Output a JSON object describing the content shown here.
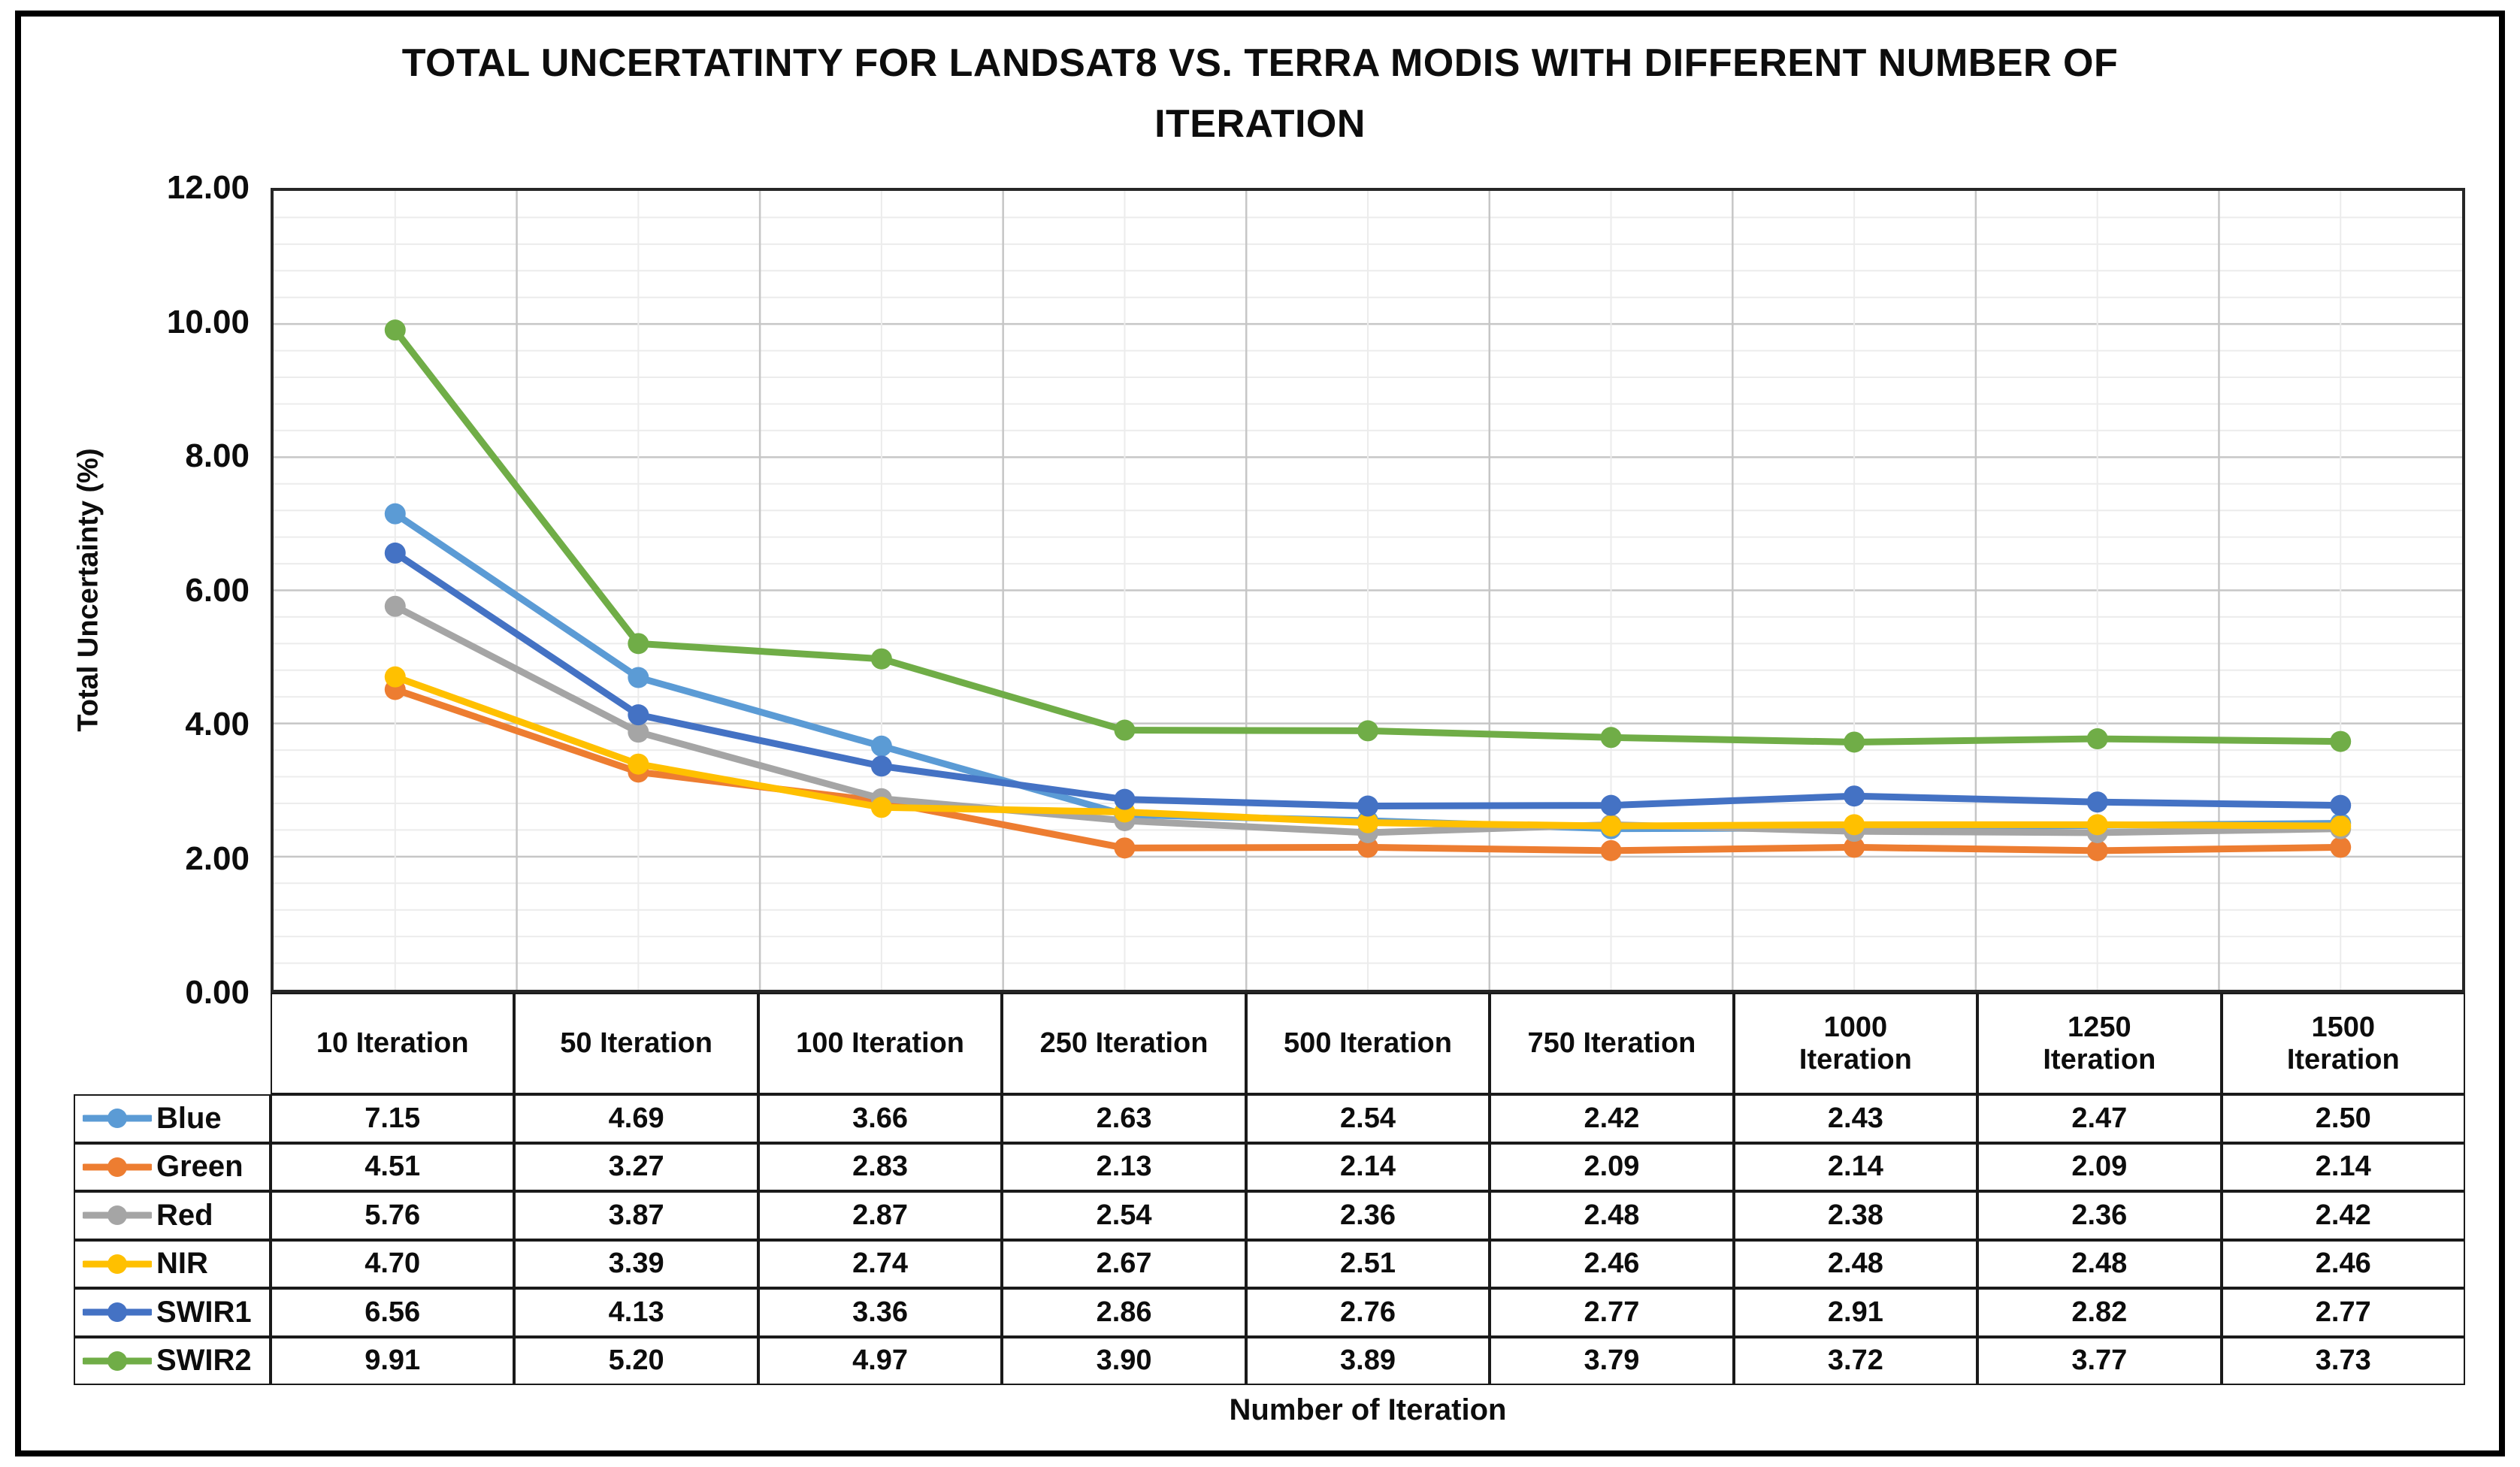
{
  "title": {
    "line1": "TOTAL UNCERTATINTY FOR LANDSAT8 VS. TERRA MODIS WITH DIFFERENT NUMBER OF",
    "line2": "ITERATION"
  },
  "y_axis": {
    "title": "Total Uncertainty (%)",
    "tick_labels": [
      "12.00",
      "10.00",
      "8.00",
      "6.00",
      "4.00",
      "2.00",
      "0.00"
    ]
  },
  "x_axis": {
    "title": "Number of Iteration"
  },
  "chart_data": {
    "type": "line",
    "title": "TOTAL UNCERTATINTY FOR LANDSAT8 VS. TERRA MODIS WITH DIFFERENT NUMBER OF ITERATION",
    "xlabel": "Number of Iteration",
    "ylabel": "Total Uncertainty (%)",
    "ylim": [
      0,
      12
    ],
    "y_major_unit": 2,
    "y_minor_unit": 0.4,
    "grid": true,
    "legend_position": "table-left-column",
    "categories": [
      "10 Iteration",
      "50 Iteration",
      "100 Iteration",
      "250 Iteration",
      "500 Iteration",
      "750 Iteration",
      "1000 Iteration",
      "1250 Iteration",
      "1500 Iteration"
    ],
    "series": [
      {
        "name": "Blue",
        "color": "#5B9BD5",
        "values": [
          7.15,
          4.69,
          3.66,
          2.63,
          2.54,
          2.42,
          2.43,
          2.47,
          2.5
        ]
      },
      {
        "name": "Green",
        "color": "#ED7D31",
        "values": [
          4.51,
          3.27,
          2.83,
          2.13,
          2.14,
          2.09,
          2.14,
          2.09,
          2.14
        ]
      },
      {
        "name": "Red",
        "color": "#A5A5A5",
        "values": [
          5.76,
          3.87,
          2.87,
          2.54,
          2.36,
          2.48,
          2.38,
          2.36,
          2.42
        ]
      },
      {
        "name": "NIR",
        "color": "#FFC000",
        "values": [
          4.7,
          3.39,
          2.74,
          2.67,
          2.51,
          2.46,
          2.48,
          2.48,
          2.46
        ]
      },
      {
        "name": "SWIR1",
        "color": "#4472C4",
        "values": [
          6.56,
          4.13,
          3.36,
          2.86,
          2.76,
          2.77,
          2.91,
          2.82,
          2.77
        ]
      },
      {
        "name": "SWIR2",
        "color": "#70AD47",
        "values": [
          9.91,
          5.2,
          4.97,
          3.9,
          3.89,
          3.79,
          3.72,
          3.77,
          3.73
        ]
      }
    ]
  },
  "style_colors": {
    "grid_major": "#C6C6C6",
    "grid_minor": "#ECECEC",
    "plot_border": "#262626",
    "table_border": "#1a1a1a",
    "text": "#0d0d0d"
  }
}
